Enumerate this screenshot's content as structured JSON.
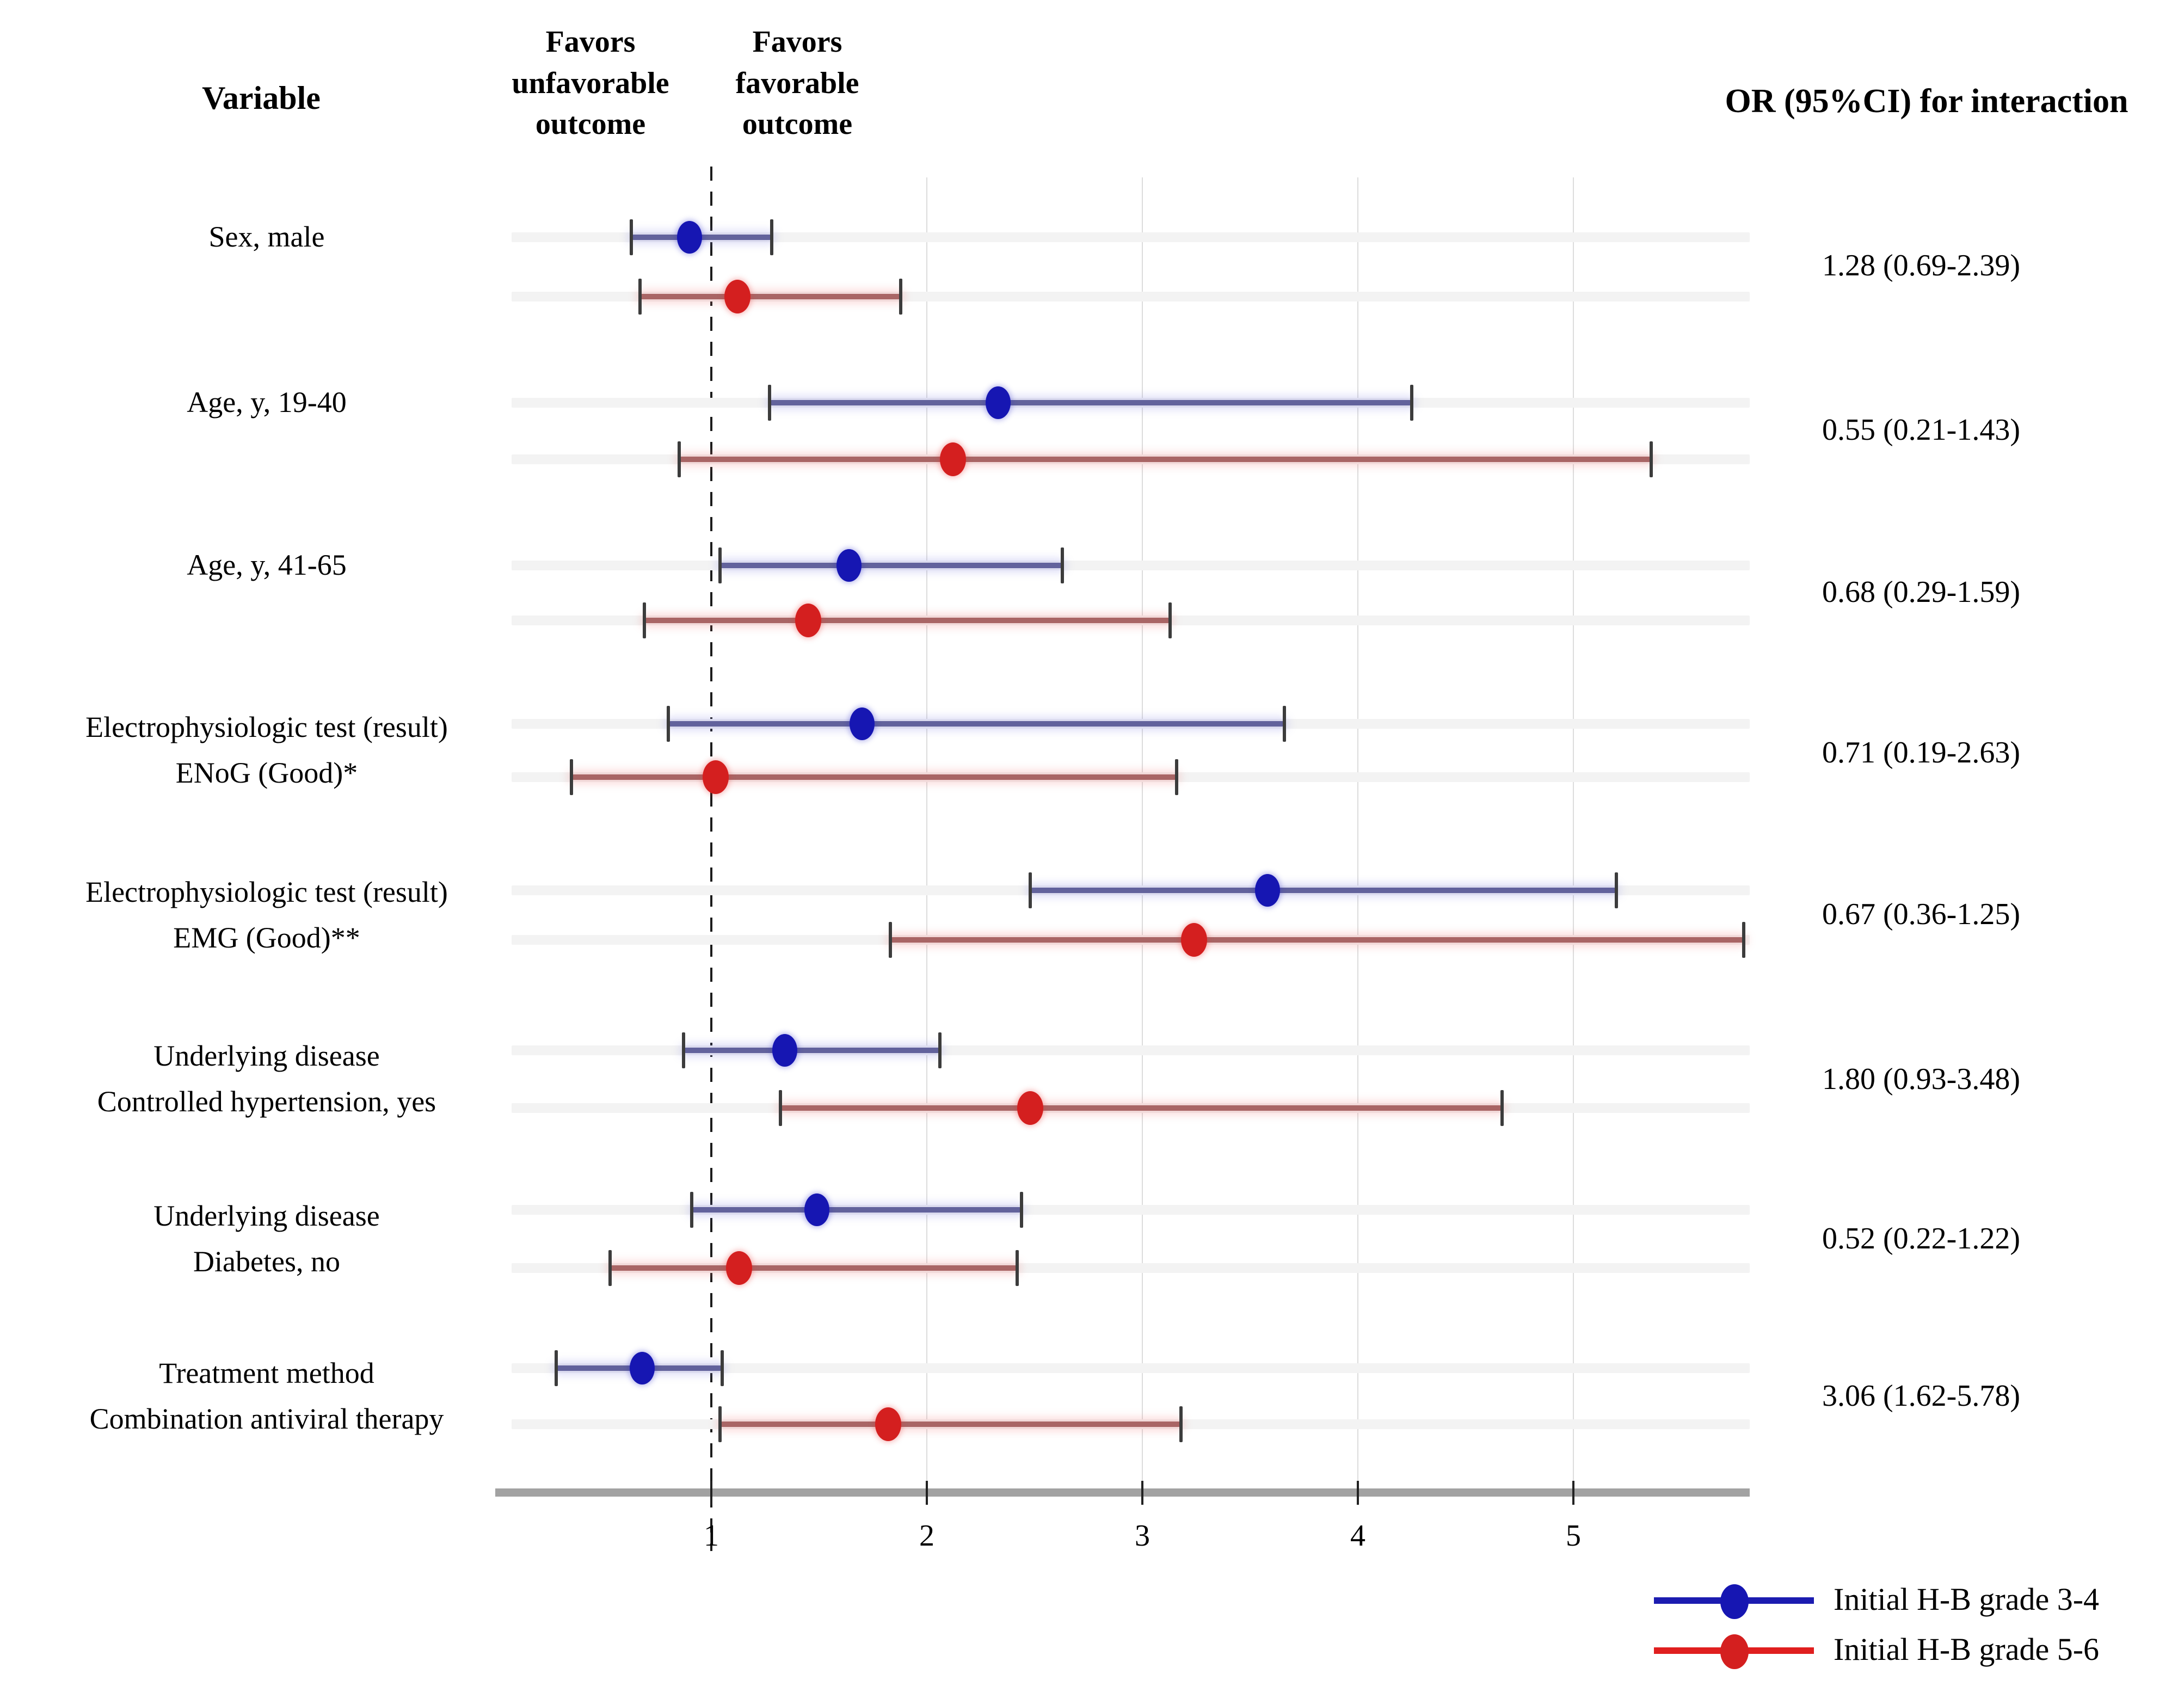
{
  "header": {
    "variable": "Variable",
    "favors_left_lines": [
      "Favors",
      "unfavorable",
      "outcome"
    ],
    "favors_right_lines": [
      "Favors",
      "favorable",
      "outcome"
    ],
    "or_column": "OR (95%CI) for interaction"
  },
  "legend": [
    {
      "label": "Initial H-B grade 3-4",
      "color": "#1616b2",
      "line_color": "#1c1cb0"
    },
    {
      "label": "Initial H-B grade 5-6",
      "color": "#d41f1f",
      "line_color": "#e01f1f"
    }
  ],
  "chart_data": {
    "type": "forest",
    "title": "",
    "x_axis": {
      "ticks": [
        1,
        2,
        3,
        4,
        5
      ],
      "range": [
        0.15,
        5.85
      ],
      "reference_line": 1,
      "gridlines": [
        2,
        3,
        4,
        5
      ],
      "grid": true
    },
    "series_names": [
      "Initial H-B grade 3-4",
      "Initial H-B grade 5-6"
    ],
    "rows": [
      {
        "label_lines": [
          "Sex, male"
        ],
        "or_text": "1.28 (0.69-2.39)",
        "blue": {
          "lo": 0.63,
          "mid": 0.9,
          "hi": 1.28
        },
        "red": {
          "lo": 0.67,
          "mid": 1.12,
          "hi": 1.88
        }
      },
      {
        "label_lines": [
          "Age, y, 19-40"
        ],
        "or_text": "0.55 (0.21-1.43)",
        "blue": {
          "lo": 1.27,
          "mid": 2.33,
          "hi": 4.25
        },
        "red": {
          "lo": 0.85,
          "mid": 2.12,
          "hi": 5.36
        }
      },
      {
        "label_lines": [
          "Age, y, 41-65"
        ],
        "or_text": "0.68 (0.29-1.59)",
        "blue": {
          "lo": 1.04,
          "mid": 1.64,
          "hi": 2.63
        },
        "red": {
          "lo": 0.69,
          "mid": 1.45,
          "hi": 3.13
        }
      },
      {
        "label_lines": [
          "Electrophysiologic test (result)",
          "ENoG (Good)*"
        ],
        "or_text": "0.71 (0.19-2.63)",
        "blue": {
          "lo": 0.8,
          "mid": 1.7,
          "hi": 3.66
        },
        "red": {
          "lo": 0.35,
          "mid": 1.02,
          "hi": 3.16
        }
      },
      {
        "label_lines": [
          "Electrophysiologic test (result)",
          "EMG (Good)**"
        ],
        "or_text": "0.67 (0.36-1.25)",
        "blue": {
          "lo": 2.48,
          "mid": 3.58,
          "hi": 5.2
        },
        "red": {
          "lo": 1.83,
          "mid": 3.24,
          "hi": 5.79
        }
      },
      {
        "label_lines": [
          "Underlying disease",
          "Controlled hypertension, yes"
        ],
        "or_text": "1.80 (0.93-3.48)",
        "blue": {
          "lo": 0.87,
          "mid": 1.34,
          "hi": 2.06
        },
        "red": {
          "lo": 1.32,
          "mid": 2.48,
          "hi": 4.67
        }
      },
      {
        "label_lines": [
          "Underlying disease",
          "Diabetes, no"
        ],
        "or_text": "0.52 (0.22-1.22)",
        "blue": {
          "lo": 0.91,
          "mid": 1.49,
          "hi": 2.44
        },
        "red": {
          "lo": 0.53,
          "mid": 1.13,
          "hi": 2.42
        }
      },
      {
        "label_lines": [
          "Treatment method",
          "Combination antiviral therapy"
        ],
        "or_text": "3.06 (1.62-5.78)",
        "blue": {
          "lo": 0.28,
          "mid": 0.68,
          "hi": 1.05
        },
        "red": {
          "lo": 1.04,
          "mid": 1.82,
          "hi": 3.18
        }
      }
    ]
  }
}
